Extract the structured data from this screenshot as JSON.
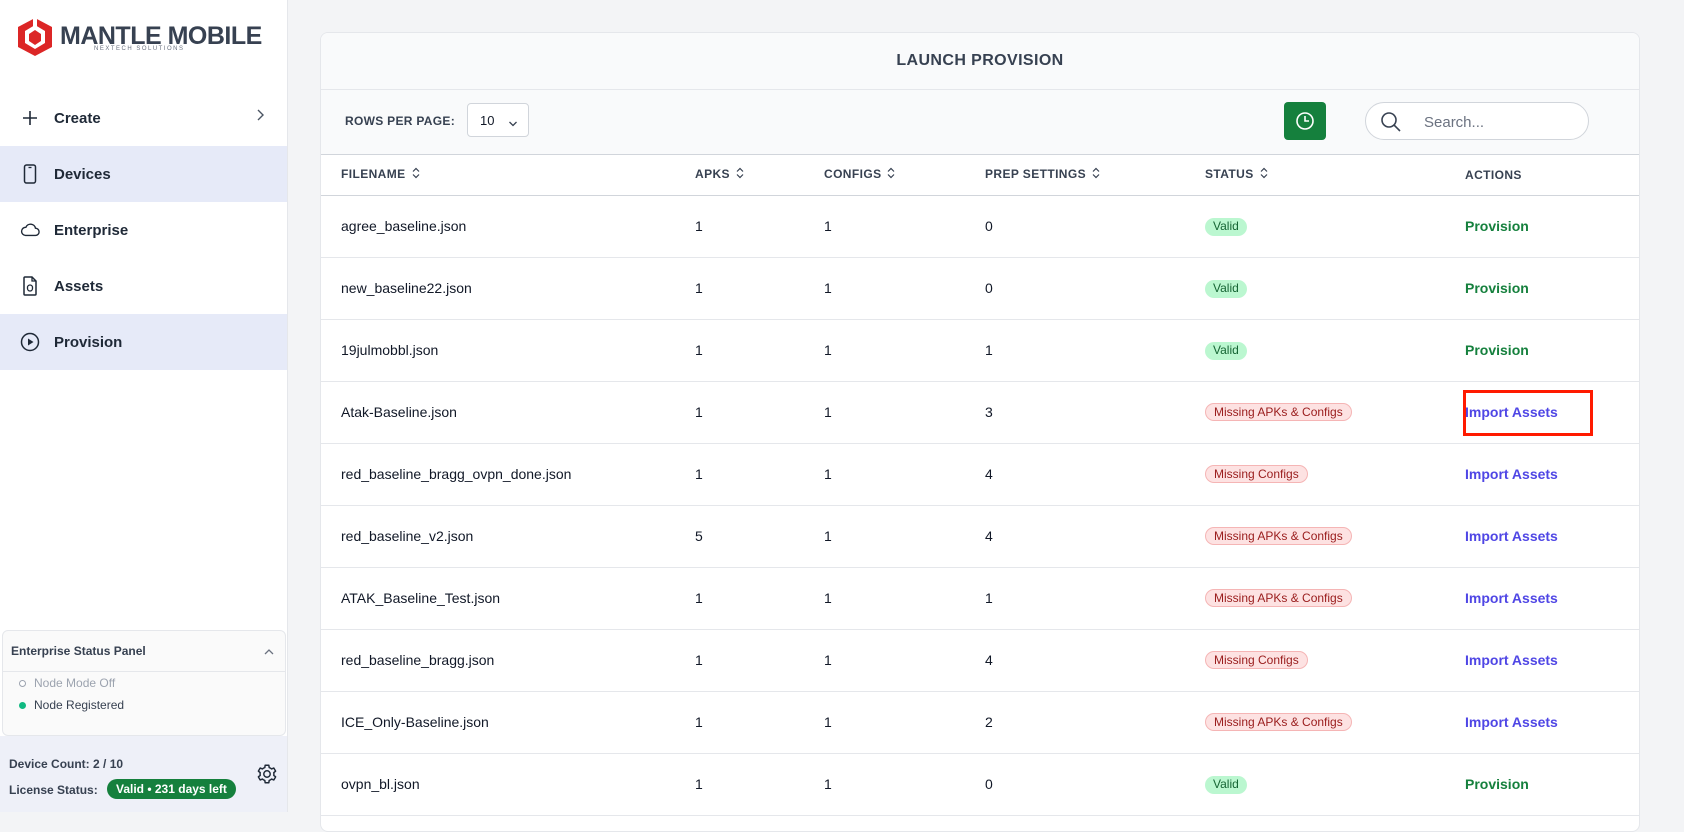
{
  "brand": {
    "name": "MANTLE MOBILE",
    "tagline": "NEXTECH SOLUTIONS",
    "color": "#dc2626"
  },
  "sidebar": {
    "items": [
      {
        "label": "Create",
        "icon": "plus-icon",
        "active": false,
        "has_chevron": true
      },
      {
        "label": "Devices",
        "icon": "phone-icon",
        "active": true
      },
      {
        "label": "Enterprise",
        "icon": "cloud-icon",
        "active": false
      },
      {
        "label": "Assets",
        "icon": "file-icon",
        "active": false
      },
      {
        "label": "Provision",
        "icon": "play-circle-icon",
        "active": true
      }
    ],
    "status_panel": {
      "title": "Enterprise Status Panel",
      "node_mode": "Node Mode Off",
      "node_registered": "Node Registered"
    },
    "device_count": "Device Count: 2 / 10",
    "license_label": "License Status:",
    "license_value": "Valid • 231 days left"
  },
  "main": {
    "title": "LAUNCH PROVISION",
    "rows_per_page_label": "ROWS PER PAGE:",
    "rows_per_page_value": "10",
    "search_placeholder": "Search...",
    "columns": [
      "FILENAME",
      "APKS",
      "CONFIGS",
      "PREP SETTINGS",
      "STATUS",
      "ACTIONS"
    ],
    "rows": [
      {
        "filename": "agree_baseline.json",
        "apks": "1",
        "configs": "1",
        "prep": "0",
        "status": "Valid",
        "status_type": "valid",
        "action": "Provision",
        "action_type": "provision"
      },
      {
        "filename": "new_baseline22.json",
        "apks": "1",
        "configs": "1",
        "prep": "0",
        "status": "Valid",
        "status_type": "valid",
        "action": "Provision",
        "action_type": "provision"
      },
      {
        "filename": "19julmobbl.json",
        "apks": "1",
        "configs": "1",
        "prep": "1",
        "status": "Valid",
        "status_type": "valid",
        "action": "Provision",
        "action_type": "provision"
      },
      {
        "filename": "Atak-Baseline.json",
        "apks": "1",
        "configs": "1",
        "prep": "3",
        "status": "Missing APKs & Configs",
        "status_type": "missing",
        "action": "Import Assets",
        "action_type": "import"
      },
      {
        "filename": "red_baseline_bragg_ovpn_done.json",
        "apks": "1",
        "configs": "1",
        "prep": "4",
        "status": "Missing Configs",
        "status_type": "missing",
        "action": "Import Assets",
        "action_type": "import"
      },
      {
        "filename": "red_baseline_v2.json",
        "apks": "5",
        "configs": "1",
        "prep": "4",
        "status": "Missing APKs & Configs",
        "status_type": "missing",
        "action": "Import Assets",
        "action_type": "import"
      },
      {
        "filename": "ATAK_Baseline_Test.json",
        "apks": "1",
        "configs": "1",
        "prep": "1",
        "status": "Missing APKs & Configs",
        "status_type": "missing",
        "action": "Import Assets",
        "action_type": "import"
      },
      {
        "filename": "red_baseline_bragg.json",
        "apks": "1",
        "configs": "1",
        "prep": "4",
        "status": "Missing Configs",
        "status_type": "missing",
        "action": "Import Assets",
        "action_type": "import"
      },
      {
        "filename": "ICE_Only-Baseline.json",
        "apks": "1",
        "configs": "1",
        "prep": "2",
        "status": "Missing APKs & Configs",
        "status_type": "missing",
        "action": "Import Assets",
        "action_type": "import"
      },
      {
        "filename": "ovpn_bl.json",
        "apks": "1",
        "configs": "1",
        "prep": "0",
        "status": "Valid",
        "status_type": "valid",
        "action": "Provision",
        "action_type": "provision"
      }
    ]
  },
  "colors": {
    "accent_green": "#15803d",
    "action_blue": "#4f46e5",
    "highlight_red": "#ff1a00"
  }
}
